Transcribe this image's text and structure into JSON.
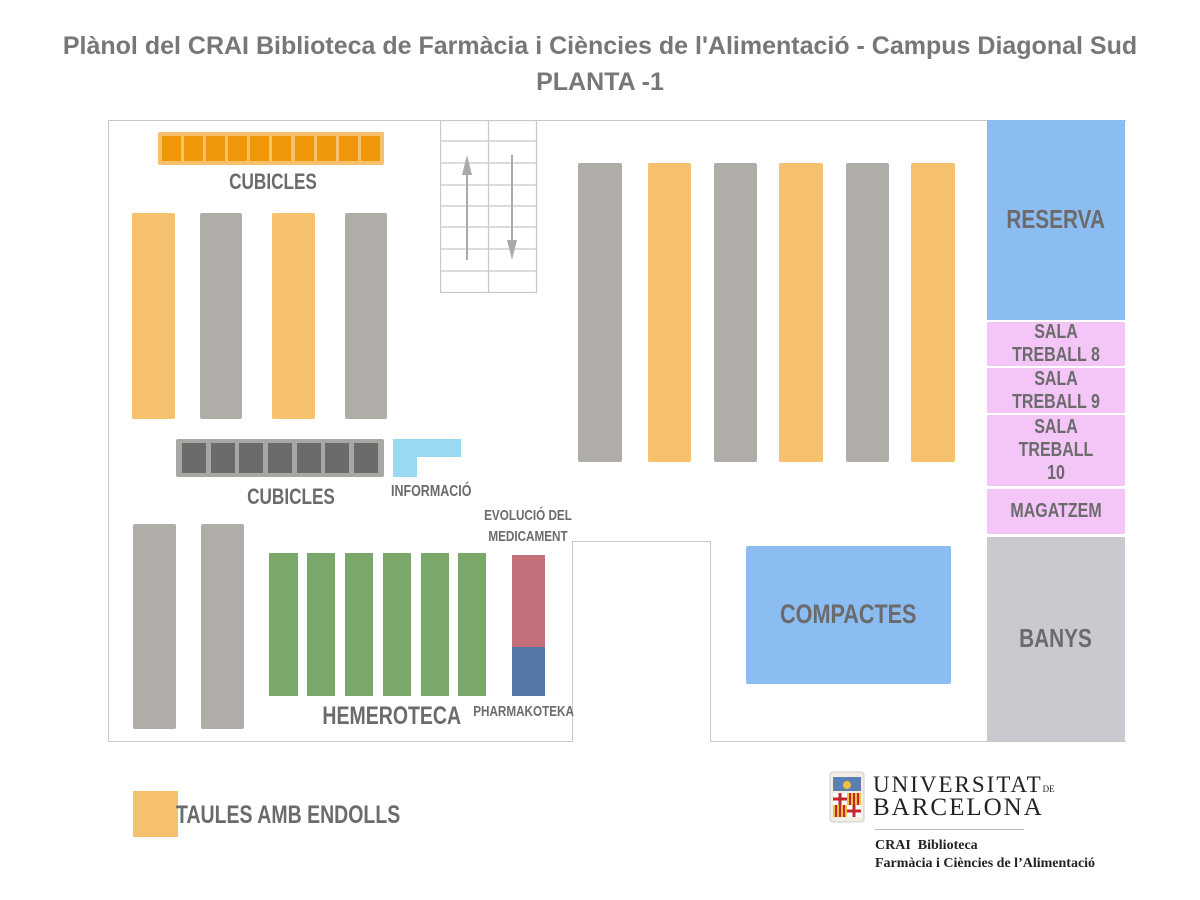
{
  "title": "Plànol del CRAI Biblioteca de Farmàcia i Ciències de l'Alimentació - Campus Diagonal Sud",
  "subtitle": "PLANTA -1",
  "labels": {
    "cubicles_top": "CUBICLES",
    "cubicles_bottom": "CUBICLES",
    "informacio": "INFORMACIÓ",
    "evolucio_1": "EVOLUCIÓ DEL",
    "evolucio_2": "MEDICAMENT",
    "hemeroteca": "HEMEROTECA",
    "pharmakoteka": "PHARMAKOTEKA",
    "compactes": "COMPACTES"
  },
  "rooms": {
    "reserva": "RESERVA",
    "sala8": "SALA TREBALL 8",
    "sala9": "SALA TREBALL 9",
    "sala10": "SALA TREBALL 10",
    "magatzem": "MAGATZEM",
    "banys": "BANYS"
  },
  "legend": {
    "label": "TAULES AMB ENDOLLS",
    "color": "#f6c16c"
  },
  "logo": {
    "line1": "UNIVERSITAT",
    "line1_suffix": "DE",
    "line2": "BARCELONA",
    "sub1": "CRAI  Biblioteca",
    "sub2": "Farmàcia i Ciències de l’Alimentació"
  },
  "colors": {
    "table_outlets": "#f6c16c",
    "shelf": "#b0ada9",
    "reserva": "#8bbcf2",
    "sala": "#f4c6f8",
    "banys": "#cbc8d0",
    "hemeroteca": "#79a86a"
  }
}
